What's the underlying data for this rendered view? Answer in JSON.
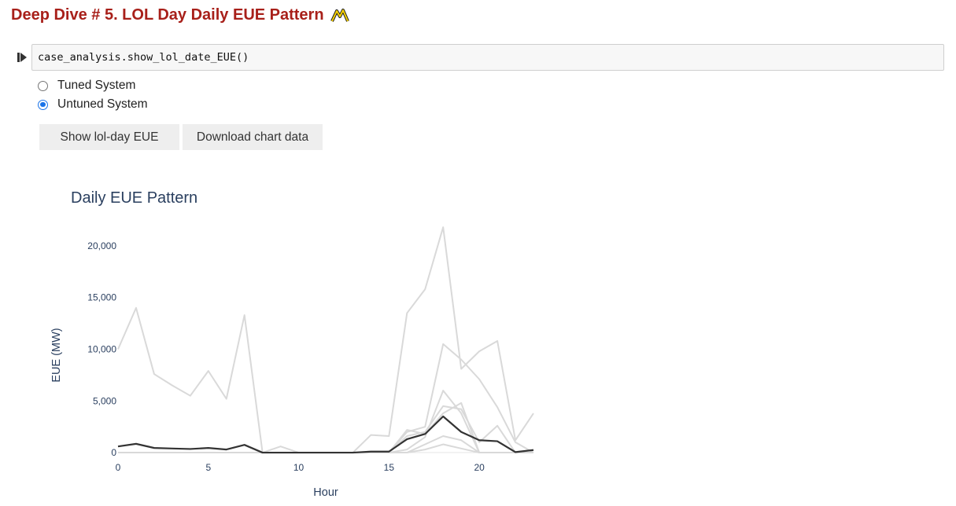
{
  "heading": {
    "title": "Deep Dive # 5. LOL Day Daily EUE Pattern",
    "icon": "mountain-icon"
  },
  "cell": {
    "code": "case_analysis.show_lol_date_EUE()"
  },
  "radio": {
    "options": [
      {
        "label": "Tuned System",
        "selected": false
      },
      {
        "label": "Untuned System",
        "selected": true
      }
    ]
  },
  "buttons": {
    "show_label": "Show lol-day EUE",
    "download_label": "Download chart data"
  },
  "colors": {
    "heading": "#a8201a",
    "axis_text": "#2a3f5f",
    "radio_accent": "#1a73e8",
    "highlight_line": "#333333",
    "background_lines": "#d9d9d9"
  },
  "chart_data": {
    "type": "line",
    "title": "Daily EUE Pattern",
    "xlabel": "Hour",
    "ylabel": "EUE (MW)",
    "xlim": [
      0,
      23
    ],
    "ylim": [
      -300,
      22500
    ],
    "x_ticks": [
      0,
      5,
      10,
      15,
      20
    ],
    "y_ticks": [
      0,
      5000,
      10000,
      15000,
      20000
    ],
    "y_tick_labels": [
      "0",
      "5,000",
      "10,000",
      "15,000",
      "20,000"
    ],
    "x": [
      0,
      1,
      2,
      3,
      4,
      5,
      6,
      7,
      8,
      9,
      10,
      11,
      12,
      13,
      14,
      15,
      16,
      17,
      18,
      19,
      20,
      21,
      22,
      23
    ],
    "series": [
      {
        "highlight": false,
        "values": [
          10000,
          14000,
          7600,
          6500,
          5500,
          7900,
          5200,
          13300,
          0,
          600,
          0,
          0,
          0,
          0,
          1700,
          1600,
          13500,
          15800,
          21800,
          8100,
          9800,
          10800,
          1200,
          3800
        ]
      },
      {
        "highlight": false,
        "values": [
          0,
          0,
          0,
          0,
          0,
          0,
          0,
          0,
          0,
          0,
          0,
          0,
          0,
          0,
          0,
          0,
          2000,
          2500,
          10500,
          9000,
          7100,
          4400,
          1000,
          0
        ]
      },
      {
        "highlight": false,
        "values": [
          0,
          0,
          0,
          0,
          0,
          0,
          0,
          0,
          0,
          0,
          0,
          0,
          0,
          0,
          0,
          0,
          300,
          1500,
          6000,
          3800,
          0,
          0,
          0,
          0
        ]
      },
      {
        "highlight": false,
        "values": [
          0,
          0,
          0,
          0,
          0,
          0,
          0,
          0,
          0,
          0,
          0,
          0,
          0,
          0,
          0,
          0,
          1600,
          2000,
          4500,
          4200,
          1000,
          2600,
          0,
          0
        ]
      },
      {
        "highlight": false,
        "values": [
          0,
          0,
          0,
          0,
          0,
          0,
          0,
          0,
          0,
          0,
          0,
          0,
          0,
          0,
          0,
          0,
          2200,
          1800,
          3800,
          4800,
          0,
          0,
          0,
          0
        ]
      },
      {
        "highlight": false,
        "values": [
          0,
          0,
          0,
          0,
          0,
          0,
          0,
          0,
          0,
          0,
          0,
          0,
          0,
          0,
          0,
          0,
          0,
          800,
          1600,
          1200,
          0,
          0,
          0,
          0
        ]
      },
      {
        "highlight": false,
        "values": [
          0,
          0,
          0,
          0,
          0,
          0,
          0,
          0,
          0,
          0,
          0,
          0,
          0,
          0,
          0,
          0,
          0,
          300,
          800,
          400,
          0,
          0,
          0,
          0
        ]
      },
      {
        "highlight": true,
        "values": [
          600,
          850,
          450,
          400,
          350,
          450,
          300,
          750,
          0,
          0,
          0,
          0,
          0,
          0,
          100,
          100,
          1300,
          1800,
          3500,
          2000,
          1200,
          1100,
          50,
          250
        ]
      }
    ]
  }
}
